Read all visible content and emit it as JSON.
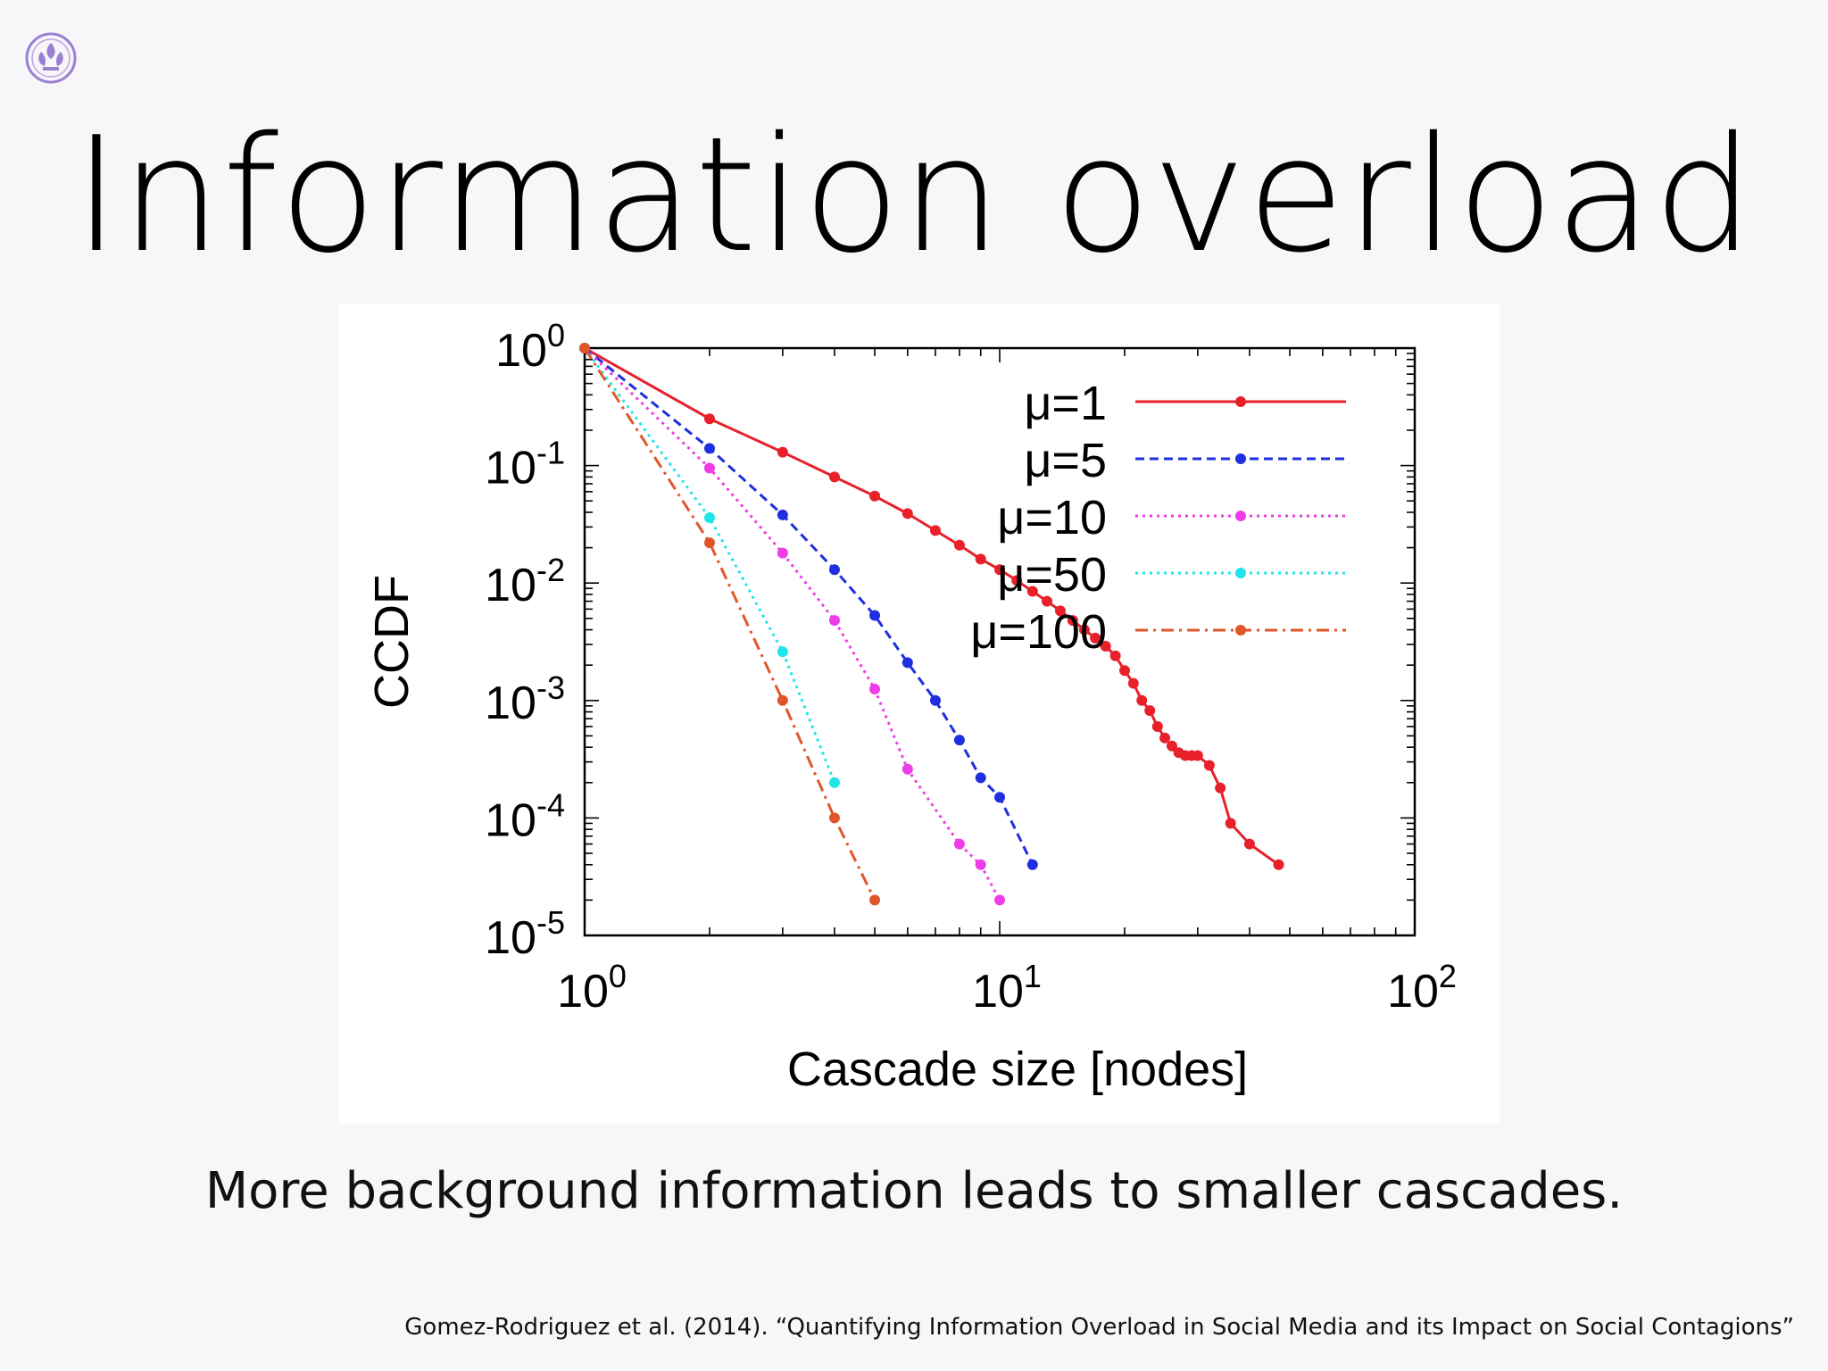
{
  "slide": {
    "title": "Information overload",
    "caption": "More background information leads to smaller cascades.",
    "citation": "Gomez-Rodriguez et al. (2014). “Quantifying Information Overload in Social Media and its Impact on Social Contagions”",
    "logo_icon": "university-crest-icon",
    "logo_color": "#9b7fd1"
  },
  "chart_data": {
    "type": "line",
    "xlabel": "Cascade size [nodes]",
    "ylabel": "CCDF",
    "xscale": "log",
    "yscale": "log",
    "xlim": [
      1,
      100
    ],
    "ylim": [
      1e-05,
      1
    ],
    "x_ticks": [
      {
        "base": "10",
        "exp": "0"
      },
      {
        "base": "10",
        "exp": "1"
      },
      {
        "base": "10",
        "exp": "2"
      }
    ],
    "y_ticks": [
      {
        "base": "10",
        "exp": "0"
      },
      {
        "base": "10",
        "exp": "-1"
      },
      {
        "base": "10",
        "exp": "-2"
      },
      {
        "base": "10",
        "exp": "-3"
      },
      {
        "base": "10",
        "exp": "-4"
      },
      {
        "base": "10",
        "exp": "-5"
      }
    ],
    "legend_position": "top-right",
    "grid": false,
    "series": [
      {
        "name": "μ=1",
        "color": "#e8202a",
        "style": "solid",
        "x": [
          1,
          2,
          3,
          4,
          5,
          6,
          7,
          8,
          9,
          10,
          11,
          12,
          13,
          14,
          15,
          16,
          17,
          18,
          19,
          20,
          21,
          22,
          23,
          24,
          25,
          26,
          27,
          28,
          29,
          30,
          32,
          34,
          36,
          40,
          47
        ],
        "y": [
          1,
          0.25,
          0.13,
          0.08,
          0.055,
          0.039,
          0.028,
          0.021,
          0.016,
          0.013,
          0.0105,
          0.0085,
          0.007,
          0.0058,
          0.0048,
          0.004,
          0.0034,
          0.0029,
          0.0024,
          0.0018,
          0.0014,
          0.001,
          0.00082,
          0.0006,
          0.00048,
          0.00041,
          0.00036,
          0.00034,
          0.00034,
          0.00034,
          0.00028,
          0.00018,
          9e-05,
          6e-05,
          4e-05
        ]
      },
      {
        "name": "μ=5",
        "color": "#1f2fe0",
        "style": "dashed",
        "x": [
          1,
          2,
          3,
          4,
          5,
          6,
          7,
          8,
          9,
          10,
          12
        ],
        "y": [
          1,
          0.14,
          0.038,
          0.013,
          0.0053,
          0.0021,
          0.001,
          0.00046,
          0.00022,
          0.00015,
          4e-05
        ]
      },
      {
        "name": "μ=10",
        "color": "#ee3ce8",
        "style": "dotted",
        "x": [
          1,
          2,
          3,
          4,
          5,
          6,
          8,
          9,
          10
        ],
        "y": [
          1,
          0.095,
          0.018,
          0.0048,
          0.00125,
          0.00026,
          6e-05,
          4e-05,
          2e-05
        ]
      },
      {
        "name": "μ=50",
        "color": "#1fe5e8",
        "style": "dotted",
        "x": [
          1,
          2,
          3,
          4
        ],
        "y": [
          1,
          0.036,
          0.0026,
          0.0002
        ]
      },
      {
        "name": "μ=100",
        "color": "#e0562a",
        "style": "dashdot",
        "x": [
          1,
          2,
          3,
          4,
          5
        ],
        "y": [
          1,
          0.022,
          0.001,
          0.0001,
          2e-05
        ]
      }
    ]
  }
}
